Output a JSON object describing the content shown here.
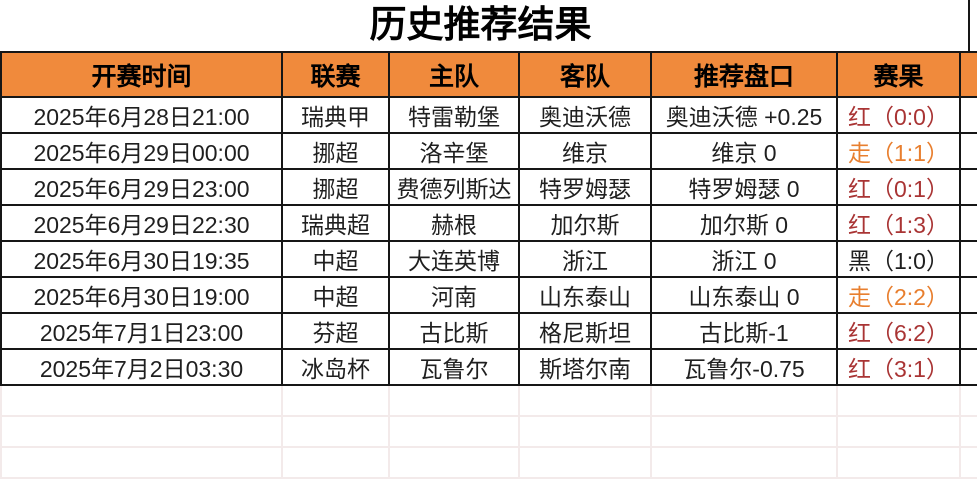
{
  "title": "历史推荐结果",
  "colors": {
    "header_bg": "#f08a3c",
    "border": "#161616",
    "faint_border": "#f3eaea",
    "text": "#1f1f1f",
    "result_red": "#a93434",
    "result_orange": "#e87f2f",
    "result_black": "#1f1f1f"
  },
  "table": {
    "columns": [
      {
        "label": "开赛时间"
      },
      {
        "label": "联赛"
      },
      {
        "label": "主队"
      },
      {
        "label": "客队"
      },
      {
        "label": "推荐盘口"
      },
      {
        "label": "赛果"
      }
    ],
    "rows": [
      {
        "time": "2025年6月28日21:00",
        "league": "瑞典甲",
        "home": "特雷勒堡",
        "away": "奥迪沃德",
        "handicap": "奥迪沃德 +0.25",
        "result": "红（0:0）",
        "status": "red"
      },
      {
        "time": "2025年6月29日00:00",
        "league": "挪超",
        "home": "洛辛堡",
        "away": "维京",
        "handicap": "维京 0",
        "result": "走（1:1）",
        "status": "orange"
      },
      {
        "time": "2025年6月29日23:00",
        "league": "挪超",
        "home": "费德列斯达",
        "away": "特罗姆瑟",
        "handicap": "特罗姆瑟 0",
        "result": "红（0:1）",
        "status": "red"
      },
      {
        "time": "2025年6月29日22:30",
        "league": "瑞典超",
        "home": "赫根",
        "away": "加尔斯",
        "handicap": "加尔斯 0",
        "result": "红（1:3）",
        "status": "red"
      },
      {
        "time": "2025年6月30日19:35",
        "league": "中超",
        "home": "大连英博",
        "away": "浙江",
        "handicap": "浙江 0",
        "result": "黑（1:0）",
        "status": "black"
      },
      {
        "time": "2025年6月30日19:00",
        "league": "中超",
        "home": "河南",
        "away": "山东泰山",
        "handicap": "山东泰山 0",
        "result": "走（2:2）",
        "status": "orange"
      },
      {
        "time": "2025年7月1日23:00",
        "league": "芬超",
        "home": "古比斯",
        "away": "格尼斯坦",
        "handicap": "古比斯-1",
        "result": "红（6:2）",
        "status": "red"
      },
      {
        "time": "2025年7月2日03:30",
        "league": "冰岛杯",
        "home": "瓦鲁尔",
        "away": "斯塔尔南",
        "handicap": "瓦鲁尔-0.75",
        "result": "红（3:1）",
        "status": "red"
      }
    ],
    "empty_row_count": 3
  }
}
